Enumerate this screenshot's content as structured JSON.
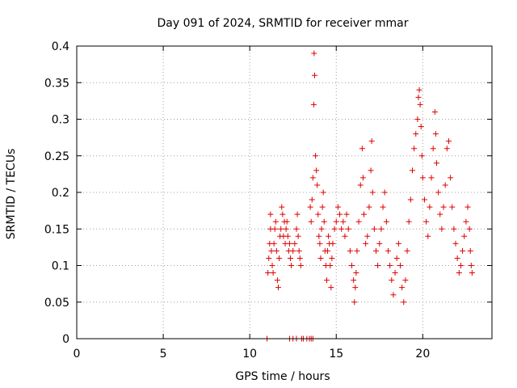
{
  "chart_data": {
    "type": "scatter",
    "title": "Day 091 of 2024, SRMTID for receiver mmar",
    "xlabel": "GPS time / hours",
    "ylabel": "SRMTID / TECUs",
    "xlim": [
      0,
      24
    ],
    "ylim": [
      0,
      0.4
    ],
    "xticks": [
      0,
      5,
      10,
      15,
      20
    ],
    "xtick_labels": [
      "0",
      "5",
      "10",
      "15",
      "20"
    ],
    "yticks": [
      0,
      0.05,
      0.1,
      0.15,
      0.2,
      0.25,
      0.3,
      0.35,
      0.4
    ],
    "ytick_labels": [
      "0",
      "0.05",
      "0.1",
      "0.15",
      "0.2",
      "0.25",
      "0.3",
      "0.35",
      "0.4"
    ],
    "grid": true,
    "marker": "+",
    "color": "#e00000",
    "series": [
      {
        "name": "SRMTID",
        "points": [
          [
            11.0,
            0.0
          ],
          [
            12.3,
            0.0
          ],
          [
            12.5,
            0.0
          ],
          [
            12.7,
            0.0
          ],
          [
            13.0,
            0.0
          ],
          [
            13.1,
            0.0
          ],
          [
            13.3,
            0.0
          ],
          [
            13.45,
            0.0
          ],
          [
            13.55,
            0.0
          ],
          [
            13.65,
            0.0
          ],
          [
            11.05,
            0.09
          ],
          [
            11.1,
            0.11
          ],
          [
            11.15,
            0.13
          ],
          [
            11.2,
            0.15
          ],
          [
            11.2,
            0.17
          ],
          [
            11.25,
            0.12
          ],
          [
            11.3,
            0.1
          ],
          [
            11.35,
            0.09
          ],
          [
            11.4,
            0.13
          ],
          [
            11.45,
            0.15
          ],
          [
            11.5,
            0.16
          ],
          [
            11.55,
            0.12
          ],
          [
            11.6,
            0.08
          ],
          [
            11.65,
            0.07
          ],
          [
            11.7,
            0.11
          ],
          [
            11.75,
            0.14
          ],
          [
            11.8,
            0.15
          ],
          [
            11.85,
            0.18
          ],
          [
            11.9,
            0.17
          ],
          [
            11.95,
            0.14
          ],
          [
            12.0,
            0.16
          ],
          [
            12.05,
            0.13
          ],
          [
            12.1,
            0.15
          ],
          [
            12.15,
            0.16
          ],
          [
            12.2,
            0.14
          ],
          [
            12.25,
            0.12
          ],
          [
            12.3,
            0.13
          ],
          [
            12.35,
            0.11
          ],
          [
            12.4,
            0.1
          ],
          [
            12.5,
            0.12
          ],
          [
            12.6,
            0.13
          ],
          [
            12.7,
            0.15
          ],
          [
            12.75,
            0.17
          ],
          [
            12.8,
            0.14
          ],
          [
            12.85,
            0.12
          ],
          [
            12.9,
            0.11
          ],
          [
            12.95,
            0.1
          ],
          [
            13.5,
            0.18
          ],
          [
            13.55,
            0.16
          ],
          [
            13.6,
            0.19
          ],
          [
            13.65,
            0.22
          ],
          [
            13.7,
            0.32
          ],
          [
            13.72,
            0.39
          ],
          [
            13.75,
            0.36
          ],
          [
            13.8,
            0.25
          ],
          [
            13.85,
            0.23
          ],
          [
            13.9,
            0.21
          ],
          [
            13.95,
            0.17
          ],
          [
            14.0,
            0.14
          ],
          [
            14.05,
            0.13
          ],
          [
            14.1,
            0.11
          ],
          [
            14.15,
            0.15
          ],
          [
            14.2,
            0.18
          ],
          [
            14.25,
            0.2
          ],
          [
            14.3,
            0.16
          ],
          [
            14.35,
            0.12
          ],
          [
            14.4,
            0.1
          ],
          [
            14.45,
            0.08
          ],
          [
            14.5,
            0.12
          ],
          [
            14.55,
            0.14
          ],
          [
            14.6,
            0.13
          ],
          [
            14.65,
            0.1
          ],
          [
            14.7,
            0.07
          ],
          [
            14.75,
            0.11
          ],
          [
            14.8,
            0.13
          ],
          [
            14.9,
            0.15
          ],
          [
            15.0,
            0.16
          ],
          [
            15.1,
            0.18
          ],
          [
            15.2,
            0.17
          ],
          [
            15.3,
            0.15
          ],
          [
            15.4,
            0.16
          ],
          [
            15.5,
            0.14
          ],
          [
            15.6,
            0.17
          ],
          [
            15.7,
            0.15
          ],
          [
            15.8,
            0.12
          ],
          [
            15.9,
            0.1
          ],
          [
            16.0,
            0.08
          ],
          [
            16.05,
            0.05
          ],
          [
            16.1,
            0.07
          ],
          [
            16.15,
            0.09
          ],
          [
            16.2,
            0.12
          ],
          [
            16.3,
            0.16
          ],
          [
            16.4,
            0.21
          ],
          [
            16.5,
            0.26
          ],
          [
            16.55,
            0.22
          ],
          [
            16.6,
            0.17
          ],
          [
            16.7,
            0.13
          ],
          [
            16.8,
            0.14
          ],
          [
            16.9,
            0.18
          ],
          [
            17.0,
            0.23
          ],
          [
            17.05,
            0.27
          ],
          [
            17.1,
            0.2
          ],
          [
            17.2,
            0.15
          ],
          [
            17.3,
            0.12
          ],
          [
            17.4,
            0.1
          ],
          [
            17.5,
            0.13
          ],
          [
            17.6,
            0.15
          ],
          [
            17.7,
            0.18
          ],
          [
            17.8,
            0.2
          ],
          [
            17.9,
            0.16
          ],
          [
            18.0,
            0.12
          ],
          [
            18.1,
            0.1
          ],
          [
            18.2,
            0.08
          ],
          [
            18.3,
            0.06
          ],
          [
            18.4,
            0.09
          ],
          [
            18.5,
            0.11
          ],
          [
            18.6,
            0.13
          ],
          [
            18.7,
            0.1
          ],
          [
            18.8,
            0.07
          ],
          [
            18.9,
            0.05
          ],
          [
            19.0,
            0.08
          ],
          [
            19.1,
            0.12
          ],
          [
            19.2,
            0.16
          ],
          [
            19.3,
            0.19
          ],
          [
            19.4,
            0.23
          ],
          [
            19.5,
            0.26
          ],
          [
            19.6,
            0.28
          ],
          [
            19.7,
            0.3
          ],
          [
            19.75,
            0.33
          ],
          [
            19.8,
            0.34
          ],
          [
            19.85,
            0.32
          ],
          [
            19.9,
            0.29
          ],
          [
            19.95,
            0.25
          ],
          [
            20.0,
            0.22
          ],
          [
            20.1,
            0.19
          ],
          [
            20.2,
            0.16
          ],
          [
            20.3,
            0.14
          ],
          [
            20.4,
            0.18
          ],
          [
            20.5,
            0.22
          ],
          [
            20.6,
            0.26
          ],
          [
            20.7,
            0.31
          ],
          [
            20.75,
            0.28
          ],
          [
            20.8,
            0.24
          ],
          [
            20.9,
            0.2
          ],
          [
            21.0,
            0.17
          ],
          [
            21.1,
            0.15
          ],
          [
            21.2,
            0.18
          ],
          [
            21.3,
            0.21
          ],
          [
            21.4,
            0.26
          ],
          [
            21.5,
            0.27
          ],
          [
            21.6,
            0.22
          ],
          [
            21.7,
            0.18
          ],
          [
            21.8,
            0.15
          ],
          [
            21.9,
            0.13
          ],
          [
            22.0,
            0.11
          ],
          [
            22.1,
            0.09
          ],
          [
            22.2,
            0.1
          ],
          [
            22.3,
            0.12
          ],
          [
            22.4,
            0.14
          ],
          [
            22.5,
            0.16
          ],
          [
            22.6,
            0.18
          ],
          [
            22.7,
            0.15
          ],
          [
            22.75,
            0.12
          ],
          [
            22.8,
            0.1
          ],
          [
            22.85,
            0.09
          ]
        ]
      }
    ]
  }
}
